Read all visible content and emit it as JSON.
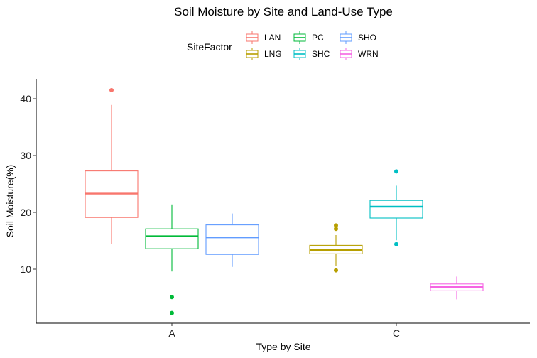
{
  "chart_data": {
    "type": "boxplot",
    "title": "Soil Moisture by Site and Land-Use Type",
    "xlabel": "Type by Site",
    "ylabel": "Soil Moisture(%)",
    "ylim": [
      0.5,
      43.5
    ],
    "yticks": [
      10,
      20,
      30,
      40
    ],
    "categories": [
      "A",
      "C"
    ],
    "grid": false,
    "legend": {
      "title": "SiteFactor",
      "placement": "top",
      "entries": [
        "LAN",
        "LNG",
        "PC",
        "SHC",
        "SHO",
        "WRN"
      ]
    },
    "series": [
      {
        "name": "LAN",
        "category": "A",
        "slot": 0,
        "color": "#F8766D",
        "whisker_low": 14.4,
        "q1": 19.1,
        "median": 23.3,
        "q3": 27.3,
        "whisker_high": 38.9,
        "outliers": [
          41.5
        ]
      },
      {
        "name": "PC",
        "category": "A",
        "slot": 1,
        "color": "#00BA38",
        "whisker_low": 9.6,
        "q1": 13.6,
        "median": 15.8,
        "q3": 17.1,
        "whisker_high": 21.4,
        "outliers": [
          5.1,
          2.3
        ]
      },
      {
        "name": "SHO",
        "category": "A",
        "slot": 2,
        "color": "#619CFF",
        "whisker_low": 10.4,
        "q1": 12.6,
        "median": 15.6,
        "q3": 17.8,
        "whisker_high": 19.8,
        "outliers": []
      },
      {
        "name": "LNG",
        "category": "C",
        "slot": 0,
        "color": "#B79F00",
        "whisker_low": 10.6,
        "q1": 12.7,
        "median": 13.4,
        "q3": 14.2,
        "whisker_high": 16.0,
        "outliers": [
          17.7,
          17.1,
          9.8
        ]
      },
      {
        "name": "SHC",
        "category": "C",
        "slot": 1,
        "color": "#00BFC4",
        "whisker_low": 15.1,
        "q1": 19.0,
        "median": 21.0,
        "q3": 22.1,
        "whisker_high": 24.7,
        "outliers": [
          27.2,
          14.4
        ]
      },
      {
        "name": "WRN",
        "category": "C",
        "slot": 2,
        "color": "#F564E3",
        "whisker_low": 4.7,
        "q1": 6.2,
        "median": 6.9,
        "q3": 7.4,
        "whisker_high": 8.7,
        "outliers": []
      }
    ]
  }
}
